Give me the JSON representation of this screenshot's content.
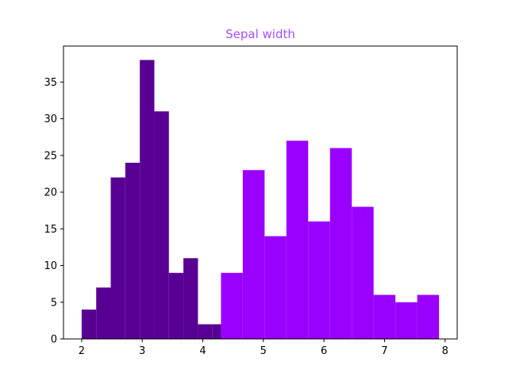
{
  "chart_data": {
    "type": "bar",
    "title": "Sepal width",
    "title_color": "#a64dff",
    "xlabel": "",
    "ylabel": "",
    "xlim": [
      1.7,
      8.2
    ],
    "ylim": [
      0,
      39.9
    ],
    "xticks": [
      2,
      3,
      4,
      5,
      6,
      7,
      8
    ],
    "yticks": [
      0,
      5,
      10,
      15,
      20,
      25,
      30,
      35
    ],
    "grid": false,
    "series": [
      {
        "color": "#580094",
        "bins": [
          {
            "x0": 2.0,
            "x1": 2.24,
            "count": 4
          },
          {
            "x0": 2.24,
            "x1": 2.48,
            "count": 7
          },
          {
            "x0": 2.48,
            "x1": 2.72,
            "count": 22
          },
          {
            "x0": 2.72,
            "x1": 2.96,
            "count": 24
          },
          {
            "x0": 2.96,
            "x1": 3.2,
            "count": 38
          },
          {
            "x0": 3.2,
            "x1": 3.44,
            "count": 31
          },
          {
            "x0": 3.44,
            "x1": 3.68,
            "count": 9
          },
          {
            "x0": 3.68,
            "x1": 3.92,
            "count": 11
          },
          {
            "x0": 3.92,
            "x1": 4.16,
            "count": 2
          },
          {
            "x0": 4.16,
            "x1": 4.4,
            "count": 2
          }
        ]
      },
      {
        "color": "#9900ff",
        "bins": [
          {
            "x0": 4.3,
            "x1": 4.66,
            "count": 9
          },
          {
            "x0": 4.66,
            "x1": 5.02,
            "count": 23
          },
          {
            "x0": 5.02,
            "x1": 5.38,
            "count": 14
          },
          {
            "x0": 5.38,
            "x1": 5.74,
            "count": 27
          },
          {
            "x0": 5.74,
            "x1": 6.1,
            "count": 16
          },
          {
            "x0": 6.1,
            "x1": 6.46,
            "count": 26
          },
          {
            "x0": 6.46,
            "x1": 6.82,
            "count": 18
          },
          {
            "x0": 6.82,
            "x1": 7.18,
            "count": 6
          },
          {
            "x0": 7.18,
            "x1": 7.54,
            "count": 5
          },
          {
            "x0": 7.54,
            "x1": 7.9,
            "count": 6
          }
        ]
      }
    ]
  }
}
